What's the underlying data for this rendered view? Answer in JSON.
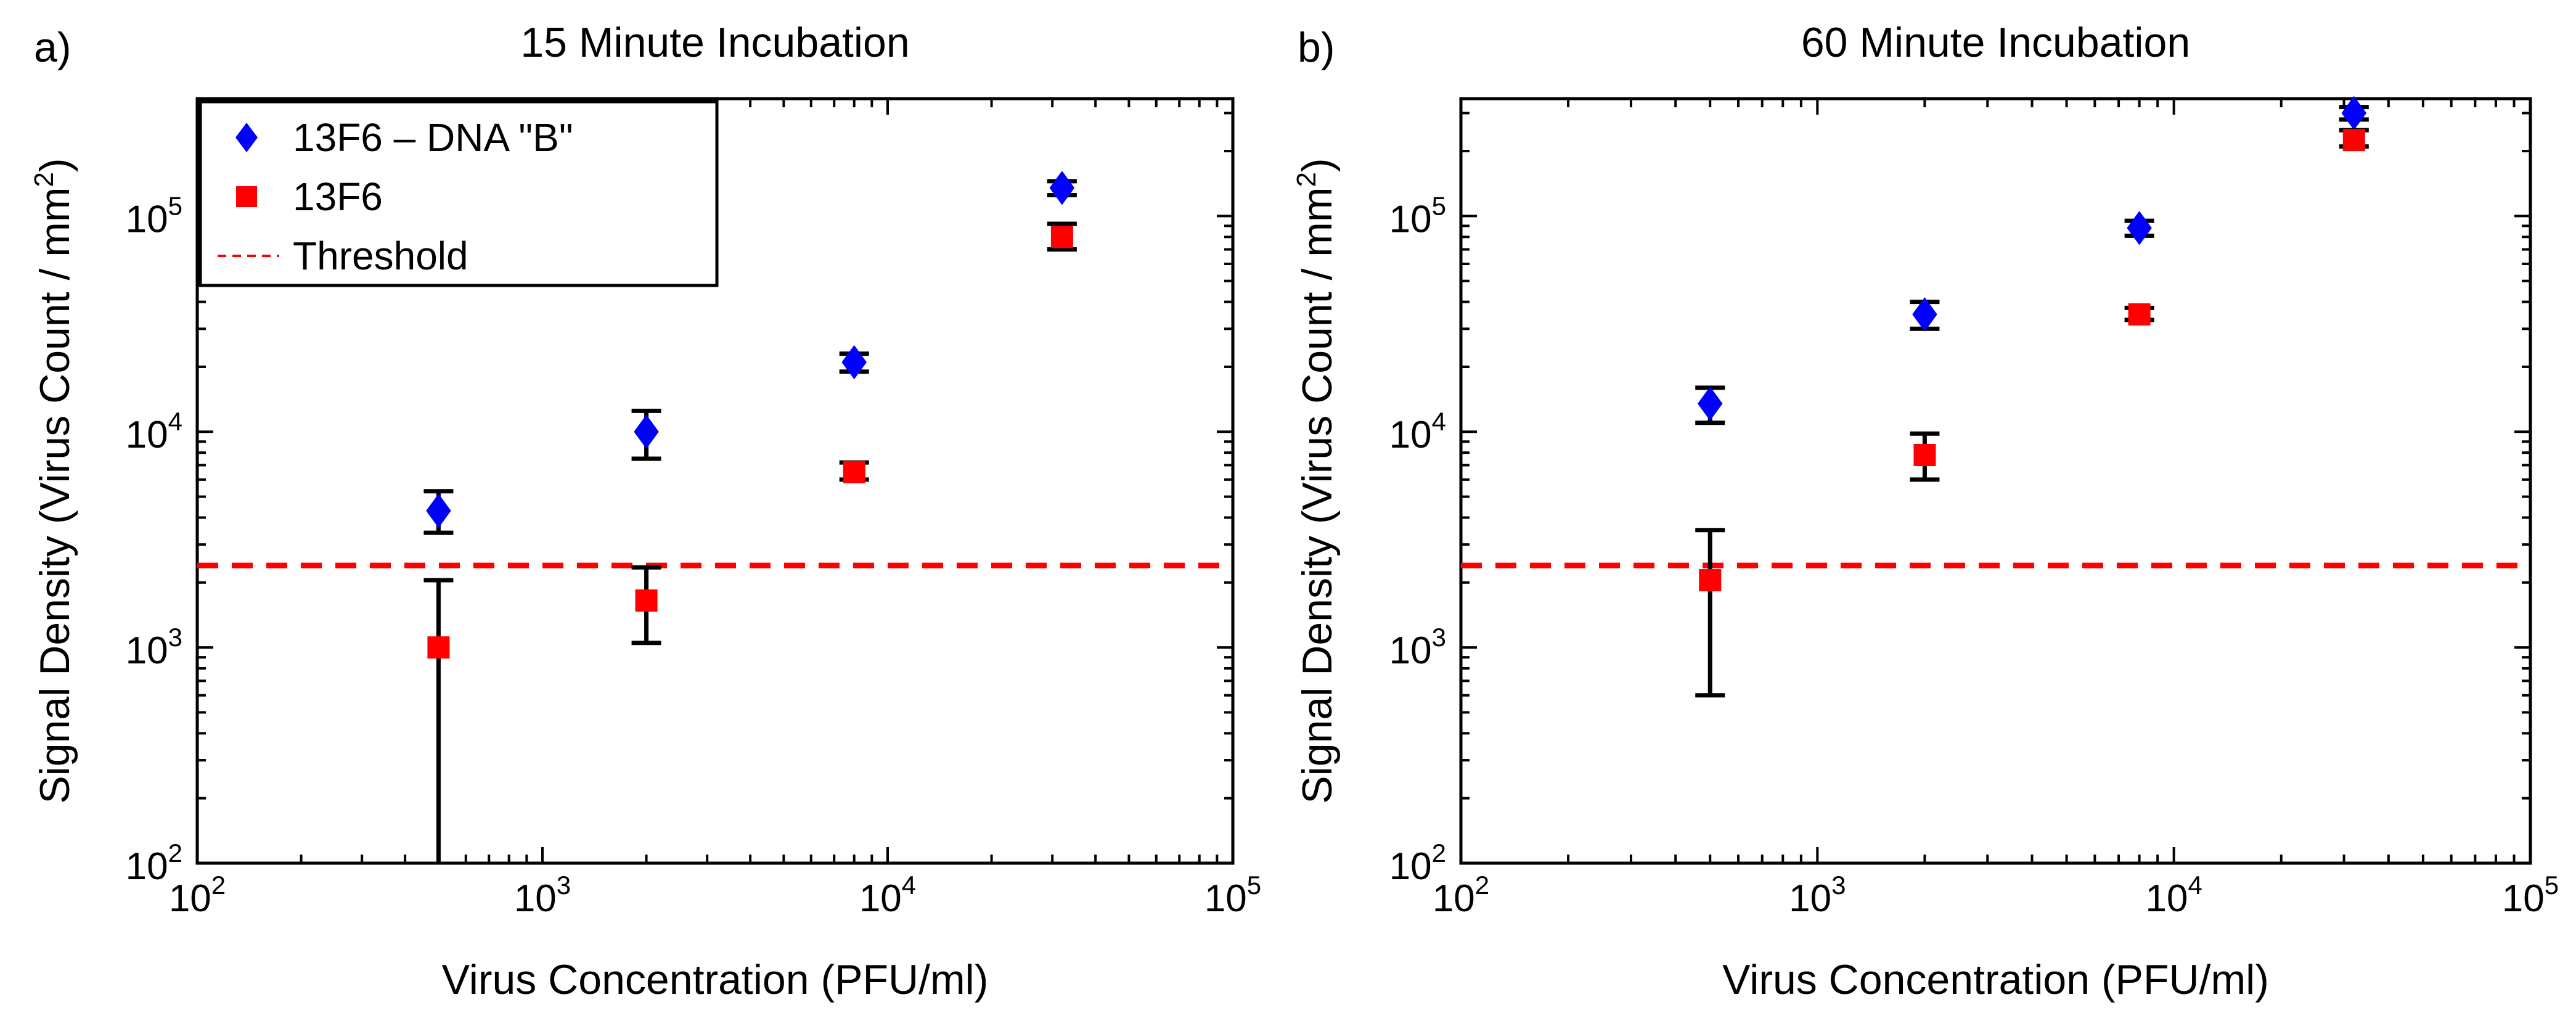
{
  "chart_data": [
    {
      "type": "scatter",
      "panel_label": "a)",
      "title": "15 Minute Incubation",
      "xlabel": "Virus Concentration (PFU/ml)",
      "ylabel": "Signal Density (Virus Count / mm",
      "ylabel_sup": "2",
      "ylabel_tail": ")",
      "xscale": "log",
      "yscale": "log",
      "xlim": [
        100,
        100000
      ],
      "ylim": [
        100,
        350000
      ],
      "xticks": [
        {
          "base": "10",
          "exp": "2",
          "value": 100
        },
        {
          "base": "10",
          "exp": "3",
          "value": 1000
        },
        {
          "base": "10",
          "exp": "4",
          "value": 10000
        },
        {
          "base": "10",
          "exp": "5",
          "value": 100000
        }
      ],
      "yticks": [
        {
          "base": "10",
          "exp": "2",
          "value": 100
        },
        {
          "base": "10",
          "exp": "3",
          "value": 1000
        },
        {
          "base": "10",
          "exp": "4",
          "value": 10000
        },
        {
          "base": "10",
          "exp": "5",
          "value": 100000
        }
      ],
      "threshold": 2400,
      "legend": {
        "location": "top-left",
        "entries": [
          {
            "label": "13F6 – DNA \"B\"",
            "marker": "diamond",
            "color": "#0000ff"
          },
          {
            "label": "13F6",
            "marker": "square",
            "color": "#ff0000"
          },
          {
            "label": "Threshold",
            "marker": "dashed-line",
            "color": "#ff0000"
          }
        ]
      },
      "series": [
        {
          "name": "13F6 – DNA \"B\"",
          "marker": "diamond",
          "color": "#0000ff",
          "points": [
            {
              "x": 500,
              "y": 4300,
              "lo": 3400,
              "hi": 5300
            },
            {
              "x": 2000,
              "y": 10000,
              "lo": 7500,
              "hi": 12500
            },
            {
              "x": 8000,
              "y": 21000,
              "lo": 19000,
              "hi": 23000
            },
            {
              "x": 32000,
              "y": 135000,
              "lo": 125000,
              "hi": 145000
            }
          ]
        },
        {
          "name": "13F6",
          "marker": "square",
          "color": "#ff0000",
          "points": [
            {
              "x": 500,
              "y": 1000,
              "lo": 100,
              "hi": 2050
            },
            {
              "x": 2000,
              "y": 1650,
              "lo": 1050,
              "hi": 2350
            },
            {
              "x": 8000,
              "y": 6500,
              "lo": 6000,
              "hi": 7200
            },
            {
              "x": 32000,
              "y": 80000,
              "lo": 70000,
              "hi": 92000
            }
          ]
        }
      ]
    },
    {
      "type": "scatter",
      "panel_label": "b)",
      "title": "60 Minute Incubation",
      "xlabel": "Virus Concentration (PFU/ml)",
      "ylabel": "Signal Density (Virus Count / mm",
      "ylabel_sup": "2",
      "ylabel_tail": ")",
      "xscale": "log",
      "yscale": "log",
      "xlim": [
        100,
        100000
      ],
      "ylim": [
        100,
        350000
      ],
      "xticks": [
        {
          "base": "10",
          "exp": "2",
          "value": 100
        },
        {
          "base": "10",
          "exp": "3",
          "value": 1000
        },
        {
          "base": "10",
          "exp": "4",
          "value": 10000
        },
        {
          "base": "10",
          "exp": "5",
          "value": 100000
        }
      ],
      "yticks": [
        {
          "base": "10",
          "exp": "2",
          "value": 100
        },
        {
          "base": "10",
          "exp": "3",
          "value": 1000
        },
        {
          "base": "10",
          "exp": "4",
          "value": 10000
        },
        {
          "base": "10",
          "exp": "5",
          "value": 100000
        }
      ],
      "threshold": 2400,
      "legend": null,
      "series": [
        {
          "name": "13F6 – DNA \"B\"",
          "marker": "diamond",
          "color": "#0000ff",
          "points": [
            {
              "x": 500,
              "y": 13500,
              "lo": 11000,
              "hi": 16000
            },
            {
              "x": 2000,
              "y": 35000,
              "lo": 30000,
              "hi": 40000
            },
            {
              "x": 8000,
              "y": 88000,
              "lo": 81000,
              "hi": 95000
            },
            {
              "x": 32000,
              "y": 300000,
              "lo": 280000,
              "hi": 320000
            }
          ]
        },
        {
          "name": "13F6",
          "marker": "square",
          "color": "#ff0000",
          "points": [
            {
              "x": 500,
              "y": 2050,
              "lo": 600,
              "hi": 3500
            },
            {
              "x": 2000,
              "y": 7800,
              "lo": 6000,
              "hi": 9800
            },
            {
              "x": 8000,
              "y": 35000,
              "lo": 33000,
              "hi": 37500
            },
            {
              "x": 32000,
              "y": 225000,
              "lo": 210000,
              "hi": 250000
            }
          ]
        }
      ]
    }
  ]
}
